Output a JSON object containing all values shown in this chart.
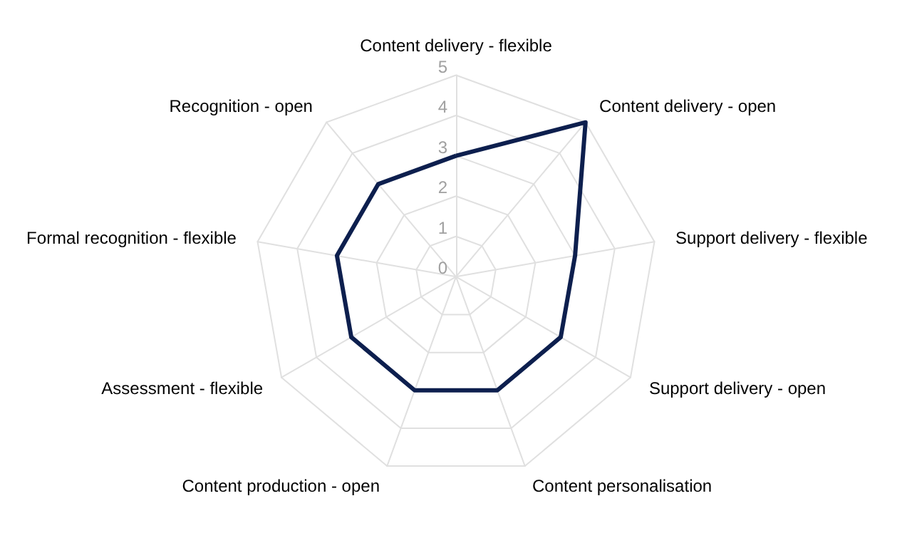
{
  "chart_data": {
    "type": "radar",
    "categories": [
      "Content delivery - flexible",
      "Content delivery - open",
      "Support delivery - flexible",
      "Support delivery - open",
      "Content personalisation",
      "Content production - open",
      "Assessment - flexible",
      "Formal recognition - flexible",
      "Recognition - open"
    ],
    "series": [
      {
        "color": "#0d1f4e",
        "values": [
          3,
          5,
          3,
          3,
          3,
          3,
          3,
          3,
          3
        ]
      }
    ],
    "ylim": [
      0,
      5
    ],
    "yticks": [
      0,
      1,
      2,
      3,
      4,
      5
    ],
    "grid": true,
    "marker": "none"
  }
}
